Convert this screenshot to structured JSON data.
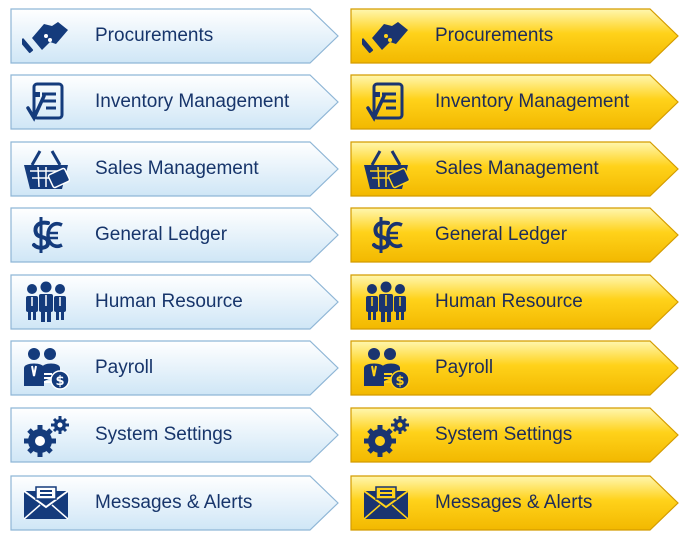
{
  "menus": {
    "blue": {
      "theme_colors": {
        "fill_top": "#ffffff",
        "fill_bottom": "#cfe6f6",
        "border": "#8fb6d6",
        "icon": "#143b7c"
      },
      "items": [
        {
          "label": "Procurements",
          "icon": "handshake-icon"
        },
        {
          "label": "Inventory Management",
          "icon": "document-check-icon"
        },
        {
          "label": "Sales Management",
          "icon": "shopping-basket-icon"
        },
        {
          "label": "General Ledger",
          "icon": "currency-icon"
        },
        {
          "label": "Human Resource",
          "icon": "people-group-icon"
        },
        {
          "label": "Payroll",
          "icon": "payroll-icon"
        },
        {
          "label": "System Settings",
          "icon": "gears-icon"
        },
        {
          "label": "Messages & Alerts",
          "icon": "envelope-icon"
        }
      ]
    },
    "gold": {
      "theme_colors": {
        "fill_top": "#fff7b0",
        "fill_bottom": "#f2b800",
        "border": "#d49c00",
        "icon": "#1a3470"
      },
      "items": [
        {
          "label": "Procurements",
          "icon": "handshake-icon"
        },
        {
          "label": "Inventory Management",
          "icon": "document-check-icon"
        },
        {
          "label": "Sales Management",
          "icon": "shopping-basket-icon"
        },
        {
          "label": "General Ledger",
          "icon": "currency-icon"
        },
        {
          "label": "Human Resource",
          "icon": "people-group-icon"
        },
        {
          "label": "Payroll",
          "icon": "payroll-icon"
        },
        {
          "label": "System Settings",
          "icon": "gears-icon"
        },
        {
          "label": "Messages & Alerts",
          "icon": "envelope-icon"
        }
      ]
    }
  }
}
